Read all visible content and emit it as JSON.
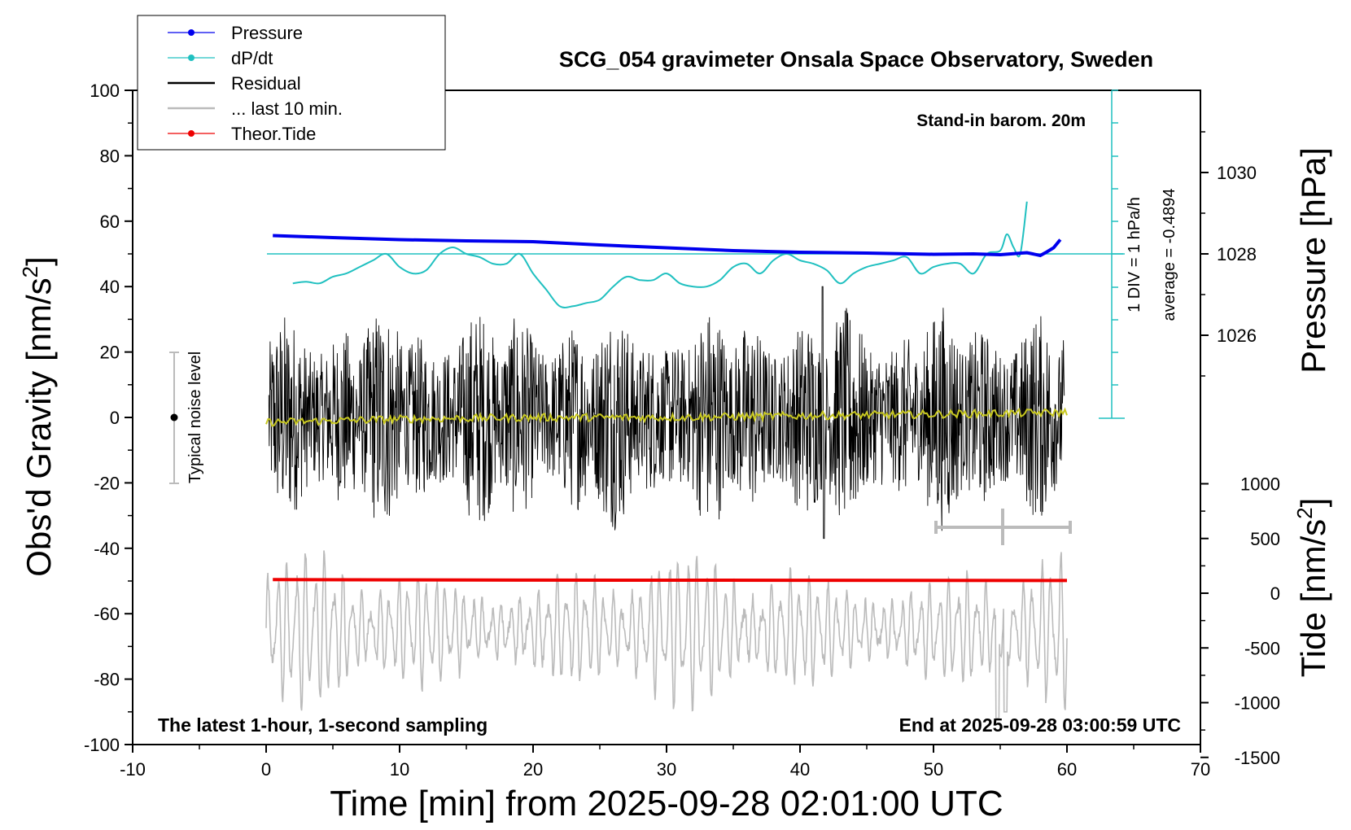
{
  "chart_data": {
    "type": "line",
    "title": "SCG_054 gravimeter Onsala Space Observatory, Sweden",
    "xlabel": "Time [min] from 2025-09-28 02:01:00 UTC",
    "ylabel_left": "Obs'd Gravity [nm/s",
    "ylabel_right_top": "Pressure [hPa]",
    "ylabel_right_bottom": "Tide [nm/s",
    "units_superscript": "2",
    "xlim": [
      -10,
      70
    ],
    "ylim_left": [
      -100,
      100
    ],
    "x_ticks": [
      "-10",
      "0",
      "10",
      "20",
      "30",
      "40",
      "50",
      "60",
      "70"
    ],
    "y_ticks_left": [
      "100",
      "80",
      "60",
      "40",
      "20",
      "0",
      "-20",
      "-40",
      "-60",
      "-80",
      "-100"
    ],
    "pressure_ticks": [
      "1030",
      "1028",
      "1026"
    ],
    "tide_ticks": [
      "1000",
      "500",
      "0",
      "-500",
      "-1000",
      "-1500"
    ],
    "annotations": {
      "barometer": "Stand-in barom. 20m",
      "div_note": "1 DIV = 1 hPa/h",
      "average_note": "average = -0.4894",
      "noise_label": "Typical noise level",
      "bottom_left": "The latest 1-hour, 1-second sampling",
      "bottom_right": "End at 2025-09-28 03:00:59 UTC"
    },
    "legend": {
      "position": "top-left",
      "entries": [
        {
          "label": "Pressure",
          "color": "#0000ee"
        },
        {
          "label": "dP/dt",
          "color": "#20c0c0"
        },
        {
          "label": "Residual",
          "color": "#000000"
        },
        {
          "label": "... last 10 min.",
          "color": "#bbbbbb"
        },
        {
          "label": "Theor.Tide",
          "color": "#ee0000"
        }
      ]
    },
    "series": [
      {
        "name": "Pressure",
        "color": "#0000ee",
        "unit": "hPa",
        "x": [
          0.5,
          5,
          10,
          15,
          20,
          25,
          30,
          35,
          40,
          45,
          50,
          53,
          55,
          57,
          58,
          58.5,
          59,
          59.5
        ],
        "values": [
          1028.45,
          1028.4,
          1028.35,
          1028.32,
          1028.3,
          1028.22,
          1028.15,
          1028.08,
          1028.04,
          1028.02,
          1027.99,
          1028.0,
          1027.98,
          1028.03,
          1027.96,
          1028.05,
          1028.15,
          1028.35
        ]
      },
      {
        "name": "dP/dt",
        "color": "#20c0c0",
        "unit": "nm/s2 axis",
        "x": [
          2,
          3,
          4,
          5,
          6,
          7,
          8,
          9,
          10,
          11,
          12,
          13,
          14,
          15,
          16,
          17,
          18,
          19,
          20,
          21,
          22,
          23,
          24,
          25,
          26,
          27,
          28,
          29,
          30,
          31,
          32,
          33,
          34,
          35,
          36,
          37,
          38,
          39,
          40,
          41,
          42,
          43,
          44,
          45,
          46,
          47,
          48,
          49,
          50,
          51,
          52,
          53,
          54,
          55,
          55.5,
          56,
          56.5,
          57
        ],
        "values": [
          41,
          41.5,
          41,
          43,
          44,
          46,
          48,
          50,
          46,
          44,
          45,
          50,
          52,
          50,
          49,
          47,
          47,
          50,
          44,
          39,
          34,
          34,
          35,
          36,
          40,
          43,
          42,
          42,
          44,
          41,
          40,
          40,
          42,
          46,
          47,
          44,
          48,
          50,
          48,
          47,
          45,
          41,
          44,
          46,
          47,
          48,
          49,
          44,
          46,
          47,
          47,
          44,
          50,
          51,
          56,
          52,
          50,
          66
        ]
      },
      {
        "name": "Theor.Tide",
        "color": "#ee0000",
        "unit": "nm/s2",
        "x": [
          0.5,
          10,
          20,
          30,
          40,
          50,
          60
        ],
        "values": [
          5,
          3,
          1,
          0,
          -1,
          -2,
          -3
        ]
      },
      {
        "name": "Residual",
        "color": "#000000",
        "amplitude_range": [
          -35,
          35
        ]
      },
      {
        "name": "Residual mean",
        "color": "#c8c820",
        "x": [
          0,
          10,
          20,
          30,
          40,
          50,
          60
        ],
        "values": [
          -1.5,
          -0.5,
          0,
          0,
          0.5,
          1,
          1.5
        ]
      },
      {
        "name": "... last 10 min.",
        "color": "#bbbbbb",
        "amplitude_range": [
          -90,
          -40
        ]
      }
    ]
  }
}
